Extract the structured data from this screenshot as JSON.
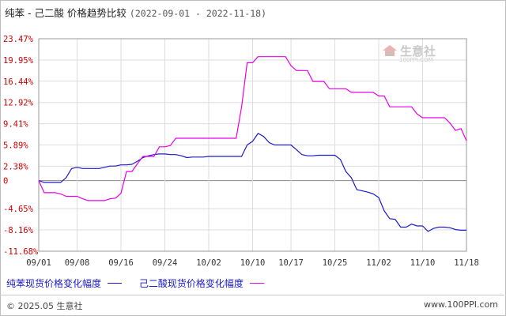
{
  "title": {
    "main": "纯苯 - 己二酸 价格趋势比较",
    "dates": "(2022-09-01 - 2022-11-18)"
  },
  "watermark": {
    "name": "生意社",
    "url": "100PPI.COM"
  },
  "footer": {
    "copyright": "© 2025.05 生意社",
    "site": "www.100PPI.com"
  },
  "colors": {
    "benzene": "#1a1ac8",
    "adipic": "#e600e6",
    "ytick": "#cc0000",
    "grid": "#dddddd",
    "zero": "#888888"
  },
  "chart_data": {
    "type": "line",
    "title": "纯苯 - 己二酸 价格趋势比较",
    "ylim": [
      -11.68,
      23.47
    ],
    "yticks": [
      23.47,
      19.95,
      16.44,
      12.92,
      9.41,
      5.89,
      2.38,
      0,
      -4.65,
      -8.16,
      -11.68
    ],
    "ytick_labels": [
      "23.47%",
      "19.95%",
      "16.44%",
      "12.92%",
      "9.41%",
      "5.89%",
      "2.38%",
      "0",
      "-4.65%",
      "-8.16%",
      "-11.68%"
    ],
    "xtick_labels": [
      "09/01",
      "09/08",
      "09/16",
      "09/24",
      "10/02",
      "10/10",
      "10/17",
      "10/25",
      "11/02",
      "11/10",
      "11/18"
    ],
    "xtick_positions": [
      0,
      7,
      15,
      23,
      31,
      39,
      46,
      54,
      62,
      70,
      78
    ],
    "x_span": [
      0,
      78
    ],
    "grid": true,
    "legend": "bottom-left",
    "series": [
      {
        "name": "纯苯现货价格变化幅度",
        "color": "#1a1ac8",
        "points": [
          [
            0,
            0
          ],
          [
            1,
            -0.3
          ],
          [
            3,
            -0.3
          ],
          [
            4,
            -0.3
          ],
          [
            5,
            0.5
          ],
          [
            6,
            2.0
          ],
          [
            7,
            2.2
          ],
          [
            8,
            2.0
          ],
          [
            9,
            2.0
          ],
          [
            10,
            2.0
          ],
          [
            11,
            2.0
          ],
          [
            12,
            2.2
          ],
          [
            13,
            2.4
          ],
          [
            14,
            2.4
          ],
          [
            15,
            2.6
          ],
          [
            16,
            2.6
          ],
          [
            17,
            2.7
          ],
          [
            18,
            3.2
          ],
          [
            19,
            3.8
          ],
          [
            20,
            4.1
          ],
          [
            21,
            4.3
          ],
          [
            22,
            4.4
          ],
          [
            23,
            4.4
          ],
          [
            24,
            4.3
          ],
          [
            25,
            4.3
          ],
          [
            26,
            4.1
          ],
          [
            27,
            3.8
          ],
          [
            28,
            3.9
          ],
          [
            29,
            3.9
          ],
          [
            30,
            3.9
          ],
          [
            31,
            4.0
          ],
          [
            32,
            4.0
          ],
          [
            33,
            4.0
          ],
          [
            34,
            4.0
          ],
          [
            35,
            4.0
          ],
          [
            36,
            4.0
          ],
          [
            37,
            4.0
          ],
          [
            38,
            5.9
          ],
          [
            39,
            6.5
          ],
          [
            40,
            7.8
          ],
          [
            41,
            7.3
          ],
          [
            42,
            6.3
          ],
          [
            43,
            5.9
          ],
          [
            44,
            5.9
          ],
          [
            45,
            5.9
          ],
          [
            46,
            5.9
          ],
          [
            47,
            5.1
          ],
          [
            48,
            4.3
          ],
          [
            49,
            4.1
          ],
          [
            50,
            4.1
          ],
          [
            51,
            4.2
          ],
          [
            52,
            4.2
          ],
          [
            53,
            4.2
          ],
          [
            54,
            4.2
          ],
          [
            55,
            3.5
          ],
          [
            56,
            1.5
          ],
          [
            57,
            0.5
          ],
          [
            58,
            -1.5
          ],
          [
            59,
            -1.7
          ],
          [
            60,
            -1.9
          ],
          [
            61,
            -2.2
          ],
          [
            62,
            -2.8
          ],
          [
            63,
            -5.0
          ],
          [
            64,
            -6.3
          ],
          [
            65,
            -6.4
          ],
          [
            66,
            -7.7
          ],
          [
            67,
            -7.7
          ],
          [
            68,
            -7.2
          ],
          [
            69,
            -7.5
          ],
          [
            70,
            -7.5
          ],
          [
            71,
            -8.4
          ],
          [
            72,
            -7.9
          ],
          [
            73,
            -7.7
          ],
          [
            74,
            -7.7
          ],
          [
            75,
            -7.8
          ],
          [
            76,
            -8.1
          ],
          [
            77,
            -8.2
          ],
          [
            78,
            -8.2
          ]
        ]
      },
      {
        "name": "己二酸现货价格变化幅度",
        "color": "#e600e6",
        "points": [
          [
            0,
            0
          ],
          [
            1,
            -2.0
          ],
          [
            2,
            -2.0
          ],
          [
            3,
            -2.0
          ],
          [
            4,
            -2.2
          ],
          [
            5,
            -2.6
          ],
          [
            6,
            -2.6
          ],
          [
            7,
            -2.6
          ],
          [
            8,
            -3.0
          ],
          [
            9,
            -3.3
          ],
          [
            10,
            -3.3
          ],
          [
            11,
            -3.3
          ],
          [
            12,
            -3.3
          ],
          [
            13,
            -3.0
          ],
          [
            14,
            -2.9
          ],
          [
            15,
            -2.1
          ],
          [
            16,
            1.5
          ],
          [
            17,
            1.5
          ],
          [
            18,
            2.8
          ],
          [
            19,
            4.0
          ],
          [
            20,
            4.0
          ],
          [
            21,
            4.0
          ],
          [
            22,
            5.6
          ],
          [
            23,
            5.6
          ],
          [
            24,
            5.8
          ],
          [
            25,
            7.0
          ],
          [
            26,
            7.0
          ],
          [
            27,
            7.0
          ],
          [
            28,
            7.0
          ],
          [
            29,
            7.0
          ],
          [
            30,
            7.0
          ],
          [
            31,
            7.0
          ],
          [
            32,
            7.0
          ],
          [
            33,
            7.0
          ],
          [
            34,
            7.0
          ],
          [
            35,
            7.0
          ],
          [
            36,
            7.0
          ],
          [
            37,
            12.2
          ],
          [
            38,
            19.5
          ],
          [
            39,
            19.5
          ],
          [
            40,
            20.5
          ],
          [
            41,
            20.5
          ],
          [
            42,
            20.5
          ],
          [
            43,
            20.5
          ],
          [
            44,
            20.5
          ],
          [
            45,
            20.5
          ],
          [
            46,
            19.0
          ],
          [
            47,
            18.2
          ],
          [
            48,
            18.2
          ],
          [
            49,
            18.2
          ],
          [
            50,
            16.4
          ],
          [
            51,
            16.4
          ],
          [
            52,
            16.4
          ],
          [
            53,
            15.2
          ],
          [
            54,
            15.2
          ],
          [
            55,
            15.2
          ],
          [
            56,
            15.2
          ],
          [
            57,
            14.6
          ],
          [
            58,
            14.6
          ],
          [
            59,
            14.6
          ],
          [
            60,
            14.6
          ],
          [
            61,
            14.6
          ],
          [
            62,
            14.0
          ],
          [
            63,
            14.0
          ],
          [
            64,
            12.2
          ],
          [
            65,
            12.2
          ],
          [
            66,
            12.2
          ],
          [
            67,
            12.2
          ],
          [
            68,
            12.2
          ],
          [
            69,
            11.0
          ],
          [
            70,
            10.4
          ],
          [
            71,
            10.4
          ],
          [
            72,
            10.4
          ],
          [
            73,
            10.4
          ],
          [
            74,
            10.4
          ],
          [
            75,
            9.5
          ],
          [
            76,
            8.3
          ],
          [
            77,
            8.6
          ],
          [
            78,
            6.6
          ]
        ]
      }
    ]
  }
}
